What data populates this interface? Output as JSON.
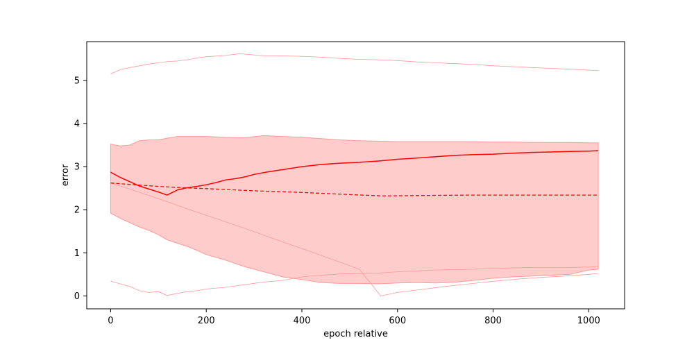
{
  "chart_data": {
    "type": "line",
    "title": "",
    "xlabel": "epoch relative",
    "ylabel": "error",
    "xlim": [
      -50,
      1075
    ],
    "ylim": [
      -0.3,
      5.9
    ],
    "xticks": [
      0,
      200,
      400,
      600,
      800,
      1000
    ],
    "yticks": [
      0,
      1,
      2,
      3,
      4,
      5
    ],
    "grid": false,
    "legend": "none",
    "colors": {
      "line": "#ff0000",
      "band_fill": "#ffcccc",
      "band_edge": "#ff9999",
      "outer": "#ff9999"
    },
    "series": [
      {
        "style": "solid",
        "x": [
          0,
          20,
          40,
          60,
          80,
          100,
          118,
          140,
          160,
          180,
          200,
          220,
          240,
          260,
          280,
          300,
          330,
          360,
          400,
          440,
          480,
          520,
          560,
          600,
          640,
          680,
          720,
          760,
          800,
          840,
          880,
          920,
          960,
          1000,
          1020
        ],
        "y": [
          2.87,
          2.75,
          2.65,
          2.55,
          2.48,
          2.41,
          2.34,
          2.46,
          2.51,
          2.54,
          2.58,
          2.63,
          2.69,
          2.72,
          2.76,
          2.82,
          2.88,
          2.93,
          3.0,
          3.05,
          3.08,
          3.1,
          3.13,
          3.17,
          3.2,
          3.23,
          3.26,
          3.28,
          3.29,
          3.31,
          3.33,
          3.34,
          3.35,
          3.36,
          3.37
        ]
      },
      {
        "style": "dashed",
        "x": [
          0,
          50,
          100,
          150,
          200,
          300,
          400,
          500,
          570,
          650,
          750,
          850,
          950,
          1020
        ],
        "y": [
          2.62,
          2.58,
          2.54,
          2.51,
          2.49,
          2.44,
          2.4,
          2.35,
          2.32,
          2.33,
          2.34,
          2.34,
          2.34,
          2.34
        ]
      },
      {
        "style": "band",
        "x": [
          0,
          20,
          40,
          60,
          80,
          100,
          118,
          140,
          160,
          180,
          200,
          240,
          280,
          320,
          360,
          400,
          440,
          480,
          520,
          560,
          600,
          640,
          680,
          720,
          760,
          800,
          840,
          880,
          920,
          960,
          1000,
          1020
        ],
        "upper": [
          3.52,
          3.48,
          3.5,
          3.6,
          3.62,
          3.62,
          3.66,
          3.7,
          3.7,
          3.7,
          3.7,
          3.68,
          3.67,
          3.72,
          3.7,
          3.68,
          3.65,
          3.62,
          3.6,
          3.59,
          3.58,
          3.58,
          3.58,
          3.58,
          3.58,
          3.57,
          3.57,
          3.56,
          3.56,
          3.56,
          3.55,
          3.55
        ],
        "lower": [
          1.92,
          1.8,
          1.7,
          1.6,
          1.52,
          1.42,
          1.3,
          1.22,
          1.15,
          1.06,
          0.96,
          0.83,
          0.68,
          0.56,
          0.44,
          0.38,
          0.31,
          0.29,
          0.29,
          0.28,
          0.3,
          0.31,
          0.3,
          0.32,
          0.36,
          0.41,
          0.44,
          0.46,
          0.48,
          0.5,
          0.6,
          0.62
        ]
      },
      {
        "style": "outer",
        "x": [
          0,
          20,
          40,
          60,
          80,
          100,
          120,
          140,
          160,
          180,
          200,
          240,
          270,
          290,
          320,
          360,
          400,
          440,
          480,
          520,
          560,
          600,
          640,
          680,
          720,
          760,
          800,
          840,
          880,
          920,
          960,
          1000,
          1020
        ],
        "y": [
          5.15,
          5.25,
          5.3,
          5.34,
          5.38,
          5.41,
          5.44,
          5.45,
          5.48,
          5.52,
          5.55,
          5.58,
          5.62,
          5.6,
          5.57,
          5.57,
          5.56,
          5.54,
          5.51,
          5.49,
          5.48,
          5.46,
          5.43,
          5.41,
          5.39,
          5.37,
          5.34,
          5.32,
          5.3,
          5.28,
          5.26,
          5.24,
          5.23
        ]
      },
      {
        "style": "outer",
        "x": [
          0,
          20,
          40,
          60,
          80,
          100,
          118,
          140,
          160,
          180,
          200,
          240,
          280,
          320,
          360,
          400,
          440,
          480,
          520,
          560,
          600,
          640,
          680,
          720,
          760,
          800,
          840,
          880,
          920,
          960,
          1000,
          1020
        ],
        "y": [
          0.34,
          0.28,
          0.22,
          0.12,
          0.08,
          0.1,
          0.01,
          0.06,
          0.1,
          0.12,
          0.16,
          0.2,
          0.26,
          0.32,
          0.36,
          0.44,
          0.48,
          0.51,
          0.52,
          0.53,
          0.56,
          0.58,
          0.6,
          0.61,
          0.62,
          0.64,
          0.65,
          0.66,
          0.66,
          0.66,
          0.67,
          0.68
        ]
      },
      {
        "style": "outer",
        "x": [
          0,
          40,
          80,
          120,
          160,
          200,
          240,
          280,
          320,
          360,
          400,
          440,
          480,
          520,
          565,
          600,
          650,
          700,
          750,
          800,
          850,
          900,
          950,
          1000,
          1020
        ],
        "y": [
          2.62,
          2.48,
          2.33,
          2.18,
          2.02,
          1.87,
          1.72,
          1.57,
          1.41,
          1.25,
          1.1,
          0.94,
          0.78,
          0.62,
          0.0,
          0.08,
          0.15,
          0.22,
          0.28,
          0.34,
          0.39,
          0.43,
          0.46,
          0.5,
          0.52
        ]
      }
    ]
  }
}
